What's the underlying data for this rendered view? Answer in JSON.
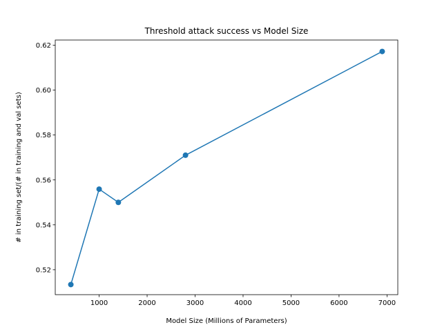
{
  "chart_data": {
    "type": "line",
    "title": "Threshold attack success vs Model Size",
    "xlabel": "Model Size (Millions of Parameters)",
    "ylabel": "# in training set/(# in training and val sets)",
    "x": [
      410,
      1000,
      1400,
      2800,
      6900
    ],
    "series": [
      {
        "values": [
          0.5134,
          0.5559,
          0.55,
          0.571,
          0.6172
        ],
        "color": "#1f77b4",
        "marker": "circle"
      }
    ],
    "xlim": [
      85,
      7225
    ],
    "ylim": [
      0.5089,
      0.6223
    ],
    "xticks": [
      1000,
      2000,
      3000,
      4000,
      5000,
      6000,
      7000
    ],
    "xtick_labels": [
      "1000",
      "2000",
      "3000",
      "4000",
      "5000",
      "6000",
      "7000"
    ],
    "yticks": [
      0.52,
      0.54,
      0.56,
      0.58,
      0.6,
      0.62
    ],
    "ytick_labels": [
      "0.52",
      "0.54",
      "0.56",
      "0.58",
      "0.60",
      "0.62"
    ],
    "grid": false,
    "legend": "none"
  }
}
